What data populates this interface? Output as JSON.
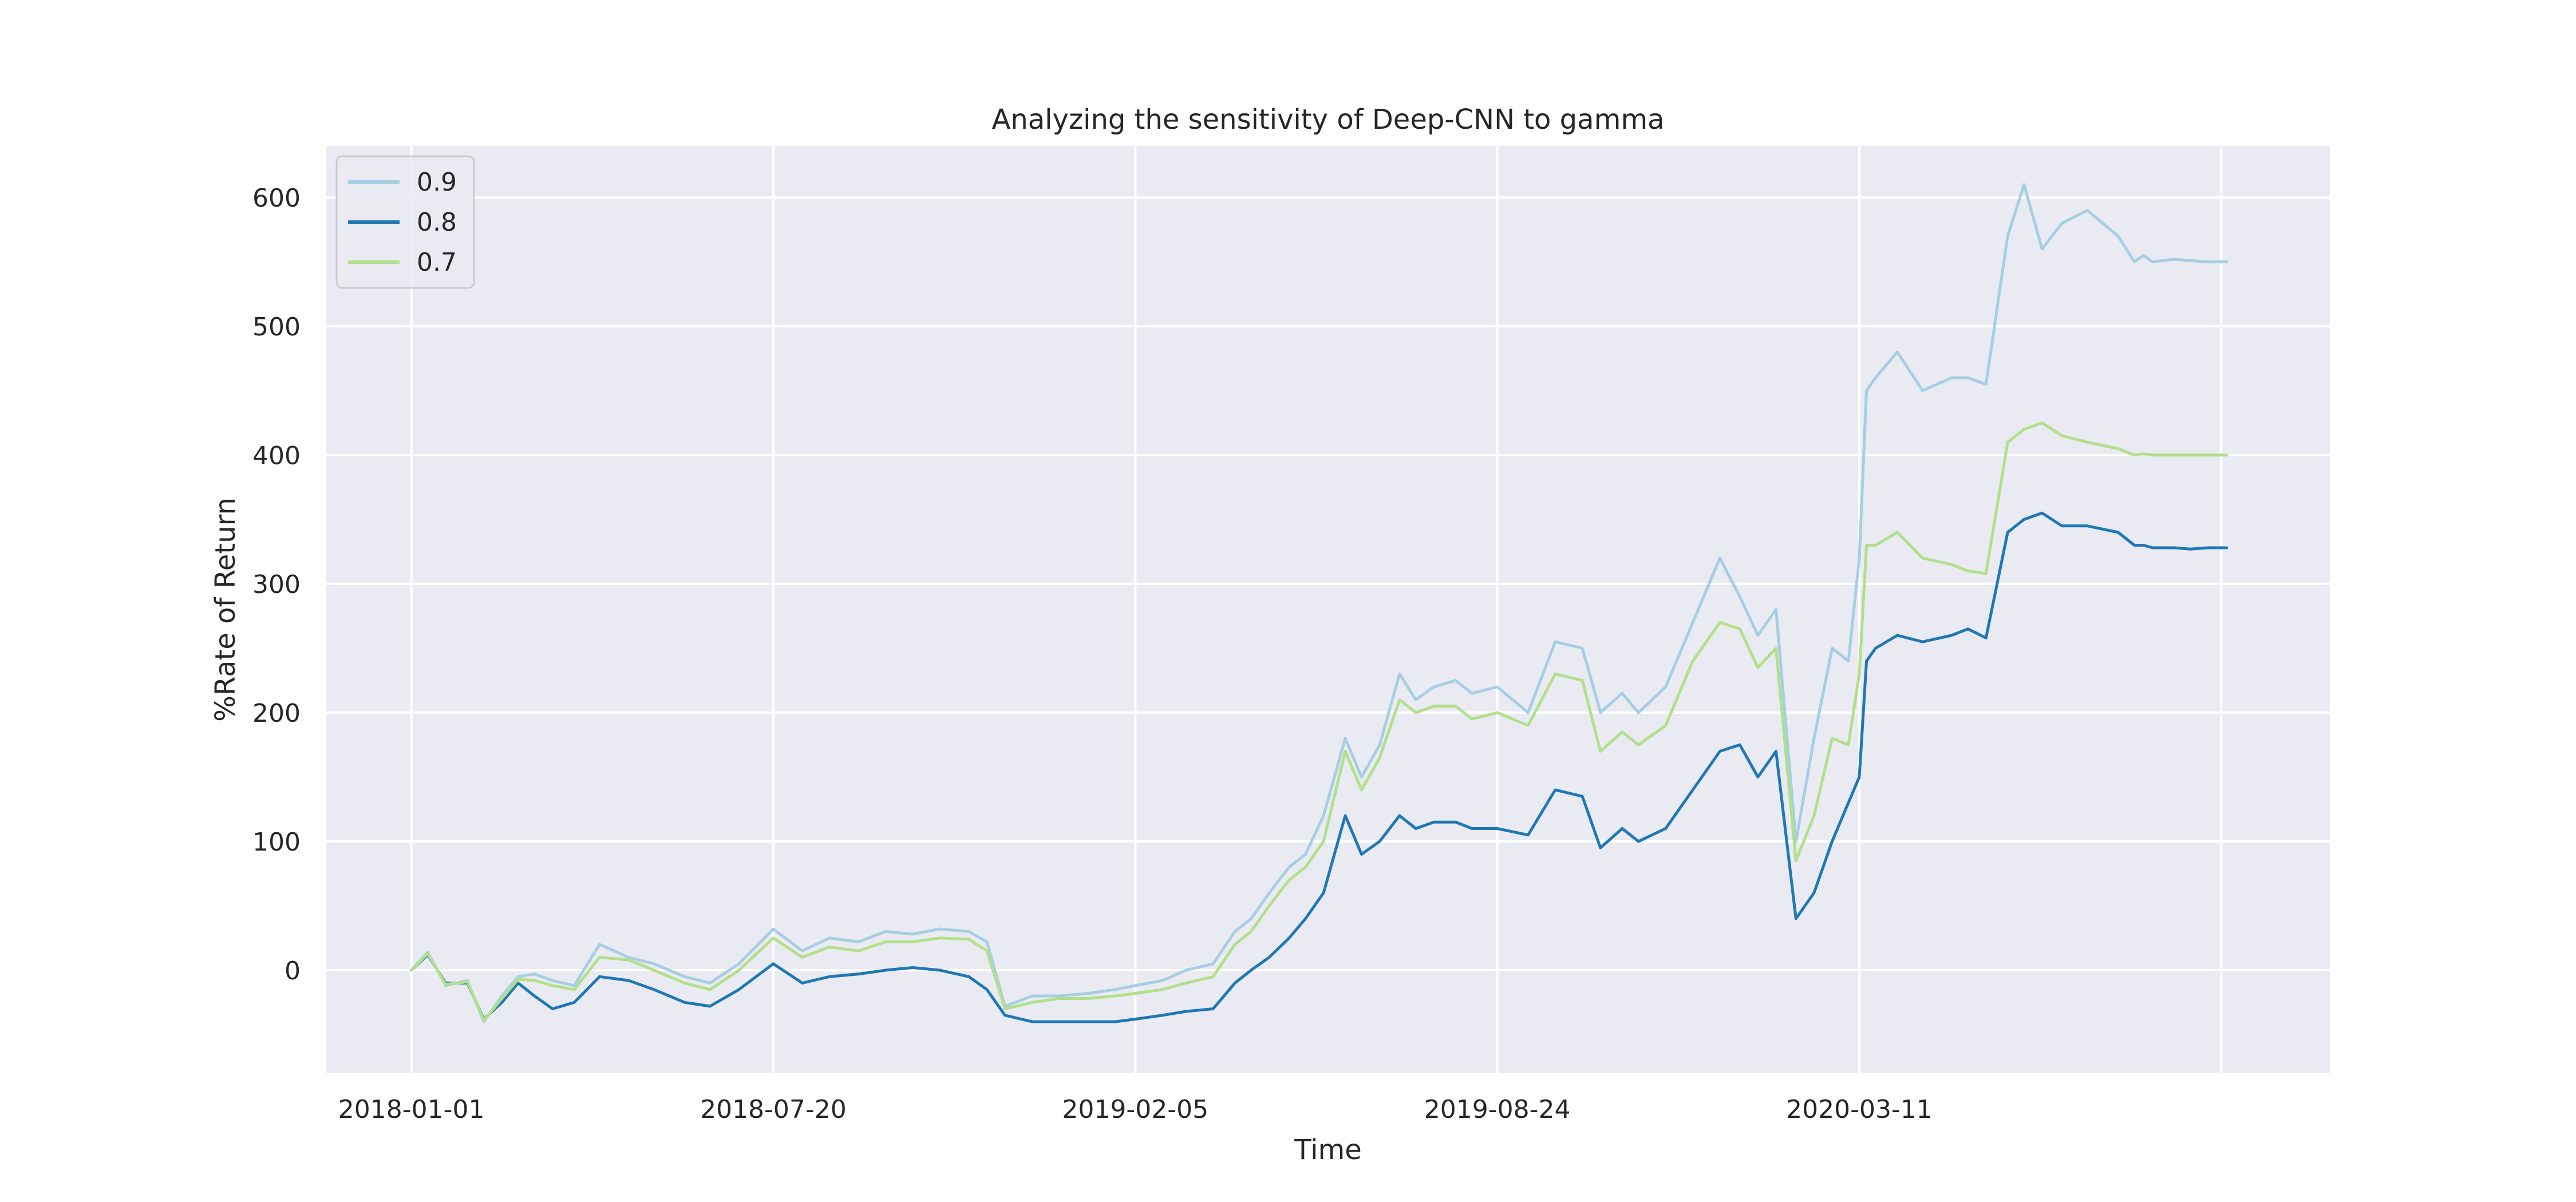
{
  "chart_data": {
    "type": "line",
    "title": "Analyzing the sensitivity of Deep-CNN to gamma",
    "xlabel": "Time",
    "ylabel": "%Rate of Return",
    "x_ticks": [
      "2018-01-01",
      "2018-07-20",
      "2019-02-05",
      "2019-08-24",
      "2020-03-11"
    ],
    "y_ticks": [
      0,
      100,
      200,
      300,
      400,
      500,
      600
    ],
    "xlim": [
      "2017-11-15",
      "2020-11-26"
    ],
    "ylim": [
      -80,
      640
    ],
    "grid": true,
    "legend_position": "top-left",
    "colors": {
      "background": "#eaeaf2",
      "grid": "#ffffff"
    },
    "x": [
      "2018-01-01",
      "2018-01-10",
      "2018-01-20",
      "2018-02-01",
      "2018-02-10",
      "2018-02-20",
      "2018-03-01",
      "2018-03-10",
      "2018-03-20",
      "2018-04-01",
      "2018-04-15",
      "2018-05-01",
      "2018-05-15",
      "2018-06-01",
      "2018-06-15",
      "2018-07-01",
      "2018-07-20",
      "2018-08-05",
      "2018-08-20",
      "2018-09-05",
      "2018-09-20",
      "2018-10-05",
      "2018-10-20",
      "2018-11-05",
      "2018-11-15",
      "2018-11-25",
      "2018-12-10",
      "2018-12-25",
      "2019-01-10",
      "2019-01-25",
      "2019-02-05",
      "2019-02-20",
      "2019-03-05",
      "2019-03-20",
      "2019-04-01",
      "2019-04-10",
      "2019-04-20",
      "2019-05-01",
      "2019-05-10",
      "2019-05-20",
      "2019-06-01",
      "2019-06-10",
      "2019-06-20",
      "2019-07-01",
      "2019-07-10",
      "2019-07-20",
      "2019-08-01",
      "2019-08-10",
      "2019-08-24",
      "2019-09-10",
      "2019-09-25",
      "2019-10-10",
      "2019-10-20",
      "2019-11-01",
      "2019-11-10",
      "2019-11-25",
      "2019-12-10",
      "2019-12-25",
      "2020-01-05",
      "2020-01-15",
      "2020-01-25",
      "2020-02-05",
      "2020-02-15",
      "2020-02-25",
      "2020-03-05",
      "2020-03-11",
      "2020-03-15",
      "2020-03-20",
      "2020-04-01",
      "2020-04-15",
      "2020-05-01",
      "2020-05-10",
      "2020-05-20",
      "2020-06-01",
      "2020-06-10",
      "2020-06-20",
      "2020-07-01",
      "2020-07-15",
      "2020-08-01",
      "2020-08-10",
      "2020-08-15",
      "2020-08-20",
      "2020-09-01",
      "2020-09-10",
      "2020-09-20",
      "2020-09-30"
    ],
    "series": [
      {
        "name": "0.9",
        "color": "#a6cee3",
        "values": [
          0,
          14,
          -12,
          -8,
          -40,
          -20,
          -5,
          -3,
          -8,
          -12,
          20,
          10,
          5,
          -5,
          -10,
          5,
          32,
          15,
          25,
          22,
          30,
          28,
          32,
          30,
          22,
          -28,
          -20,
          -20,
          -18,
          -15,
          -12,
          -8,
          0,
          5,
          30,
          40,
          60,
          80,
          90,
          120,
          180,
          150,
          175,
          230,
          210,
          220,
          225,
          215,
          220,
          200,
          255,
          250,
          200,
          215,
          200,
          220,
          270,
          320,
          290,
          260,
          280,
          100,
          180,
          250,
          240,
          320,
          450,
          460,
          480,
          450,
          460,
          460,
          455,
          570,
          610,
          560,
          580,
          590,
          570,
          550,
          555,
          550,
          552,
          551,
          550,
          550
        ]
      },
      {
        "name": "0.8",
        "color": "#1f78b4",
        "values": [
          0,
          12,
          -10,
          -10,
          -38,
          -25,
          -10,
          -20,
          -30,
          -25,
          -5,
          -8,
          -15,
          -25,
          -28,
          -15,
          5,
          -10,
          -5,
          -3,
          0,
          2,
          0,
          -5,
          -15,
          -35,
          -40,
          -40,
          -40,
          -40,
          -38,
          -35,
          -32,
          -30,
          -10,
          0,
          10,
          25,
          40,
          60,
          120,
          90,
          100,
          120,
          110,
          115,
          115,
          110,
          110,
          105,
          140,
          135,
          95,
          110,
          100,
          110,
          140,
          170,
          175,
          150,
          170,
          40,
          60,
          100,
          130,
          150,
          240,
          250,
          260,
          255,
          260,
          265,
          258,
          340,
          350,
          355,
          345,
          345,
          340,
          330,
          330,
          328,
          328,
          327,
          328,
          328
        ]
      },
      {
        "name": "0.7",
        "color": "#b2df8a",
        "values": [
          0,
          13,
          -11,
          -9,
          -39,
          -22,
          -7,
          -8,
          -12,
          -15,
          10,
          8,
          0,
          -10,
          -15,
          0,
          25,
          10,
          18,
          15,
          22,
          22,
          25,
          24,
          15,
          -30,
          -25,
          -22,
          -22,
          -20,
          -18,
          -15,
          -10,
          -5,
          20,
          30,
          50,
          70,
          80,
          100,
          170,
          140,
          165,
          210,
          200,
          205,
          205,
          195,
          200,
          190,
          230,
          225,
          170,
          185,
          175,
          190,
          240,
          270,
          265,
          235,
          250,
          85,
          120,
          180,
          175,
          230,
          330,
          330,
          340,
          320,
          315,
          310,
          308,
          410,
          420,
          425,
          415,
          410,
          405,
          400,
          401,
          400,
          400,
          400,
          400,
          400
        ]
      }
    ]
  }
}
